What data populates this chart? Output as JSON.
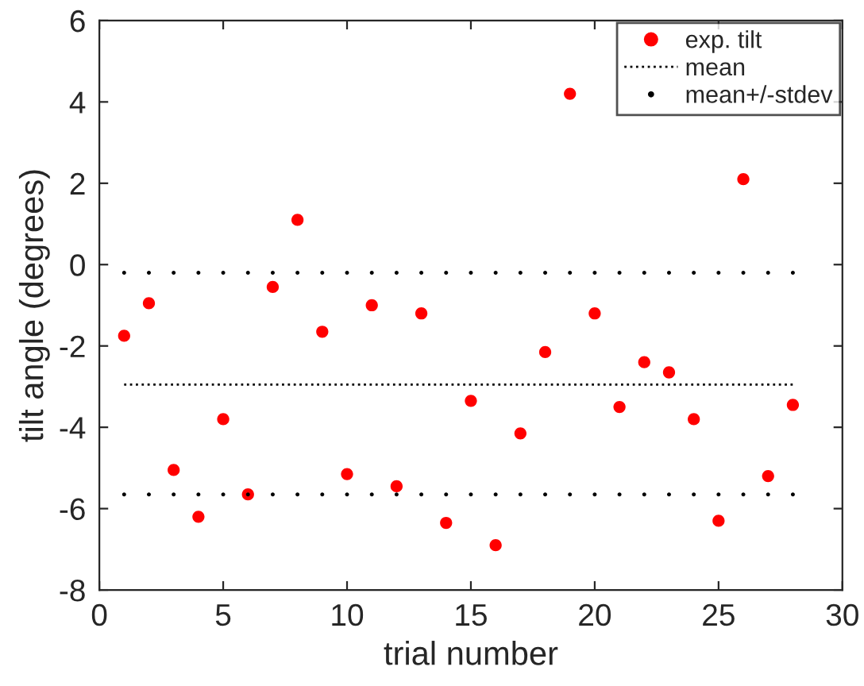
{
  "chart_data": {
    "type": "scatter",
    "xlabel": "trial number",
    "ylabel": "tilt angle (degrees)",
    "x": [
      1,
      2,
      3,
      4,
      5,
      6,
      7,
      8,
      9,
      10,
      11,
      12,
      13,
      14,
      15,
      16,
      17,
      18,
      19,
      20,
      21,
      22,
      23,
      24,
      25,
      26,
      27,
      28
    ],
    "series": [
      {
        "name": "exp. tilt",
        "marker": "circle",
        "color": "#ff0000",
        "values": [
          -1.75,
          -0.95,
          -5.05,
          -6.2,
          -3.8,
          -5.65,
          -0.55,
          1.1,
          -1.65,
          -5.15,
          -1.0,
          -5.45,
          -1.2,
          -6.35,
          -3.35,
          -6.9,
          -4.15,
          -2.15,
          4.2,
          -1.2,
          -3.5,
          -2.4,
          -2.65,
          -3.8,
          -6.3,
          2.1,
          -5.2,
          -3.45
        ]
      },
      {
        "name": "mean",
        "type": "line",
        "line_style": "dotted",
        "marker": "none",
        "color": "#000000",
        "values": [
          -2.95,
          -2.95,
          -2.95,
          -2.95,
          -2.95,
          -2.95,
          -2.95,
          -2.95,
          -2.95,
          -2.95,
          -2.95,
          -2.95,
          -2.95,
          -2.95,
          -2.95,
          -2.95,
          -2.95,
          -2.95,
          -2.95,
          -2.95,
          -2.95,
          -2.95,
          -2.95,
          -2.95,
          -2.95,
          -2.95,
          -2.95,
          -2.95
        ]
      },
      {
        "name": "mean+/-stdev",
        "marker": "circle",
        "color": "#000000",
        "x": [
          1,
          2,
          3,
          4,
          5,
          6,
          7,
          8,
          9,
          10,
          11,
          12,
          13,
          14,
          15,
          16,
          17,
          18,
          19,
          20,
          21,
          22,
          23,
          24,
          25,
          26,
          27,
          28,
          1,
          2,
          3,
          4,
          5,
          6,
          7,
          8,
          9,
          10,
          11,
          12,
          13,
          14,
          15,
          16,
          17,
          18,
          19,
          20,
          21,
          22,
          23,
          24,
          25,
          26,
          27,
          28
        ],
        "values": [
          -0.2,
          -0.2,
          -0.2,
          -0.2,
          -0.2,
          -0.2,
          -0.2,
          -0.2,
          -0.2,
          -0.2,
          -0.2,
          -0.2,
          -0.2,
          -0.2,
          -0.2,
          -0.2,
          -0.2,
          -0.2,
          -0.2,
          -0.2,
          -0.2,
          -0.2,
          -0.2,
          -0.2,
          -0.2,
          -0.2,
          -0.2,
          -0.2,
          -5.65,
          -5.65,
          -5.65,
          -5.65,
          -5.65,
          -5.65,
          -5.65,
          -5.65,
          -5.65,
          -5.65,
          -5.65,
          -5.65,
          -5.65,
          -5.65,
          -5.65,
          -5.65,
          -5.65,
          -5.65,
          -5.65,
          -5.65,
          -5.65,
          -5.65,
          -5.65,
          -5.65,
          -5.65,
          -5.65,
          -5.65,
          -5.65
        ]
      }
    ],
    "xlim": [
      0,
      30
    ],
    "xticks": [
      0,
      5,
      10,
      15,
      20,
      25,
      30
    ],
    "ylim": [
      -8,
      6
    ],
    "yticks": [
      -8,
      -6,
      -4,
      -2,
      0,
      2,
      4,
      6
    ],
    "grid": false,
    "legend": "top right"
  }
}
